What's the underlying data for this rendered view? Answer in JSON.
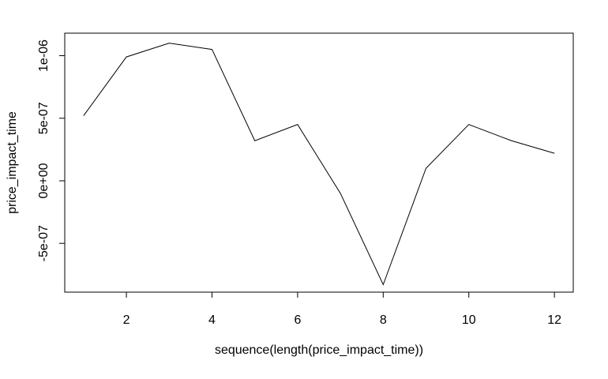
{
  "chart_data": {
    "type": "line",
    "title": "",
    "xlabel": "sequence(length(price_impact_time))",
    "ylabel": "price_impact_time",
    "x": [
      1,
      2,
      3,
      4,
      5,
      6,
      7,
      8,
      9,
      10,
      11,
      12
    ],
    "series": [
      {
        "values": [
          5.2e-07,
          9.9e-07,
          1.1e-06,
          1.05e-06,
          3.2e-07,
          4.5e-07,
          -1e-07,
          -8.3e-07,
          1e-07,
          4.5e-07,
          3.2e-07,
          2.2e-07
        ]
      }
    ],
    "xlim": [
      0.56,
      12.44
    ],
    "ylim": [
      -8.9e-07,
      1.18e-06
    ],
    "x_ticks": [
      2,
      4,
      6,
      8,
      10,
      12
    ],
    "x_tick_labels": [
      "2",
      "4",
      "6",
      "8",
      "10",
      "12"
    ],
    "y_ticks": [
      -5e-07,
      0,
      5e-07,
      1e-06
    ],
    "y_tick_labels": [
      "-5e-07",
      "0e+00",
      "5e-07",
      "1e-06"
    ],
    "grid": false,
    "line_color": "#000000"
  }
}
